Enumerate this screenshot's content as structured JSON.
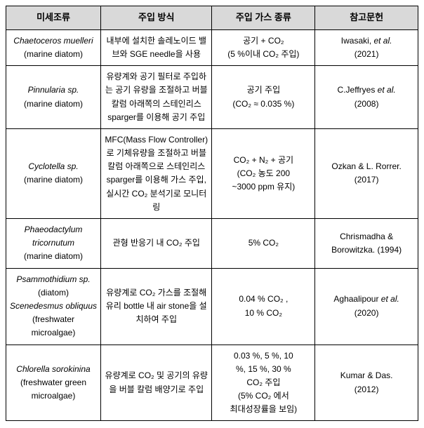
{
  "headers": {
    "species": "미세조류",
    "method": "주입 방식",
    "gas": "주입 가스 종류",
    "reference": "참고문헌"
  },
  "rows": [
    {
      "species_main": "Chaetoceros muelleri",
      "species_note": "(marine diatom)",
      "method": "내부에 설치한 솔레노이드 밸브와 SGE needle을 사용",
      "gas": "공기 + CO₂\n(5 %이내 CO₂ 주입)",
      "ref_main": "Iwasaki, et al.",
      "ref_year": "(2021)"
    },
    {
      "species_main": "Pinnularia sp.",
      "species_note": "(marine diatom)",
      "method": "유량계와 공기 필터로 주입하는 공기 유량을 조절하고 버블 칼럼 아래쪽의 스테인리스 sparger를 이용해 공기 주입",
      "gas": "공기 주입\n(CO₂ ≈ 0.035 %)",
      "ref_main": "C.Jeffryes et al.",
      "ref_year": "(2008)"
    },
    {
      "species_main": "Cyclotella sp.",
      "species_note": "(marine diatom)",
      "method": "MFC(Mass Flow Controller)로 기체유량을 조절하고 버블 칼럼 아래쪽으로 스테인리스 sparger를 이용해 가스 주입, 실시간 CO₂ 분석기로 모니터링",
      "gas": "CO₂ + N₂ + 공기\n(CO₂ 농도 200\n~3000 ppm 유지)",
      "ref_main": "Ozkan & L. Rorrer.",
      "ref_year": "(2017)"
    },
    {
      "species_main": "Phaeodactylum tricornutum",
      "species_note": "(marine diatom)",
      "method": "관형 반응기 내 CO₂ 주입",
      "gas": "5% CO₂",
      "ref_main": "Chrismadha & Borowitzka. (1994)",
      "ref_year": ""
    },
    {
      "species_main": "Psammothidium sp.",
      "species_note": "(diatom)",
      "species_main2": "Scenedesmus obliquus",
      "species_note2": "(freshwater microalgae)",
      "method": "유량계로 CO₂ 가스를 조절해 유리 bottle 내 air stone을 설치하여 주입",
      "gas": "0.04 % CO₂ ,\n10 % CO₂",
      "ref_main": "Aghaalipour et al.",
      "ref_year": "(2020)"
    },
    {
      "species_main": "Chlorella sorokinina",
      "species_note": "(freshwater green microalgae)",
      "method": "유량계로 CO₂ 및 공기의 유량을 버블 칼럼 배양기로 주입",
      "gas": "0.03 %, 5 %, 10\n%, 15 %, 30 %\nCO₂ 주입\n(5% CO₂ 에서\n최대성장률을 보임)",
      "ref_main": "Kumar & Das.",
      "ref_year": "(2012)"
    }
  ]
}
